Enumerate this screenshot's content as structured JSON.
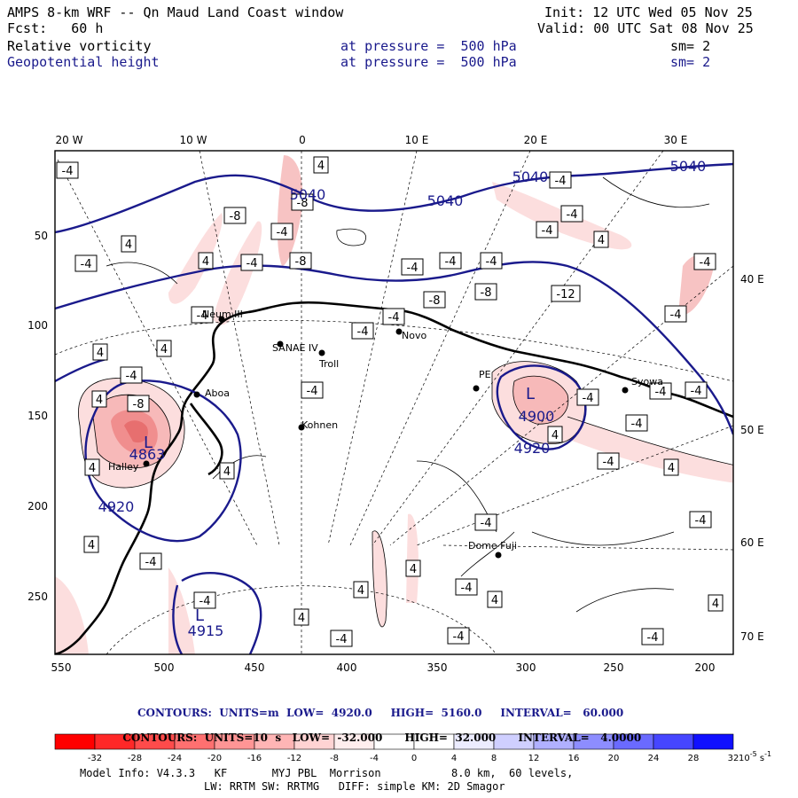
{
  "header": {
    "title": "AMPS 8-km WRF -- Qn Maud Land Coast window",
    "init": "Init: 12 UTC Wed 05 Nov 25",
    "fcst": "Fcst:   60 h",
    "valid": "Valid: 00 UTC Sat 08 Nov 25",
    "field1": {
      "name": "Relative vorticity",
      "level": "at pressure =  500 hPa",
      "sm": "sm= 2"
    },
    "field2": {
      "name": "Geopotential height",
      "level": "at pressure =  500 hPa",
      "sm": "sm= 2"
    }
  },
  "axes": {
    "top_labels": [
      "20 W",
      "10 W",
      "0",
      "10 E",
      "20 E",
      "30 E"
    ],
    "left_labels": [
      "50",
      "100",
      "150",
      "200",
      "250"
    ],
    "bottom_labels": [
      "550",
      "500",
      "450",
      "400",
      "350",
      "300",
      "250",
      "200"
    ],
    "right_labels": [
      "40 E",
      "50 E",
      "60 E",
      "70 E"
    ]
  },
  "stations": [
    "Neum III",
    "SANAE IV",
    "Troll",
    "Novo",
    "Halley",
    "Aboa",
    "PE",
    "Syowa",
    "Kohnen",
    "Dome Fuji"
  ],
  "height_labels": [
    "5040",
    "5040",
    "5040",
    "5040",
    "4920",
    "4920",
    "4900",
    "4863",
    "4915"
  ],
  "low_markers": [
    "L",
    "L",
    "L"
  ],
  "contour_boxes": [
    "-4",
    "4",
    "-8",
    "-4",
    "-8",
    "-4",
    "4",
    "-4",
    "-4",
    "4",
    "-4",
    "4",
    "-4",
    "-8",
    "-4",
    "-4",
    "-4",
    "-4",
    "-8",
    "-12",
    "-8",
    "-4",
    "-4",
    "-4",
    "4",
    "4",
    "-4",
    "-4",
    "-4",
    "-8",
    "4",
    "4",
    "4",
    "-4",
    "-4",
    "-4",
    "-4",
    "4",
    "-4",
    "4",
    "-4",
    "4",
    "-4",
    "-4",
    "4",
    "4",
    "-4",
    "-4",
    "4",
    "4",
    "-4",
    "-4",
    "4",
    "-4"
  ],
  "footer": {
    "contours1": "CONTOURS:  UNITS=m  LOW=  4920.0     HIGH=  5160.0     INTERVAL=   60.000",
    "contours2": "CONTOURS:  UNITS=10  s   LOW=  -32.000      HIGH=  32.000      INTERVAL=   4.0000",
    "exp": "-5",
    "exp1": "-1",
    "colorbar_ticks": [
      "-32",
      "-28",
      "-24",
      "-20",
      "-16",
      "-12",
      "-8",
      "-4",
      "0",
      "4",
      "8",
      "12",
      "16",
      "20",
      "24",
      "28",
      "32"
    ],
    "colorbar_unit": "10",
    "colorbar_unit_exp": "-5",
    "colorbar_unit_s": "s",
    "colorbar_unit_sexp": "-1",
    "colorbar_colors": [
      "#ff0000",
      "#ff2828",
      "#ff4b4b",
      "#ff7070",
      "#ff9595",
      "#ffb5b5",
      "#ffd3d3",
      "#ffeeee",
      "#ffffff",
      "#ffffff",
      "#ececff",
      "#cfcfff",
      "#b0b0ff",
      "#8d8dff",
      "#6a6aff",
      "#4646ff",
      "#1010ff"
    ],
    "model1": "Model Info: V4.3.3   KF       MYJ PBL  Morrison           8.0 km,  60 levels,",
    "model2": "LW: RRTM SW: RRTMG   DIFF: simple KM: 2D Smagor"
  }
}
